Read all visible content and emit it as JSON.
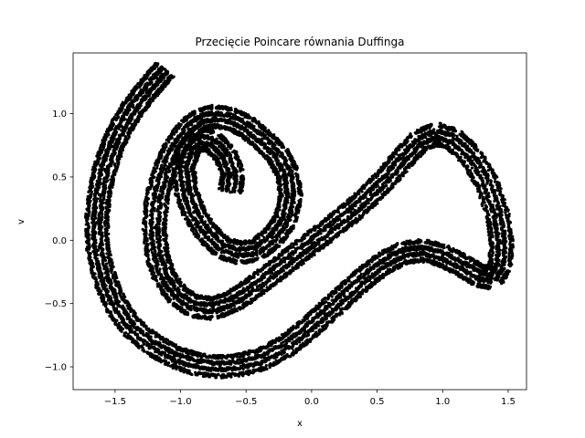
{
  "chart_data": {
    "type": "scatter",
    "title": "Przecięcie Poincare równania Duffinga",
    "xlabel": "x",
    "ylabel": "v",
    "xlim": [
      -1.82,
      1.64
    ],
    "ylim": [
      -1.18,
      1.48
    ],
    "x_ticks": [
      "−1.5",
      "−1.0",
      "−0.5",
      "0.0",
      "0.5",
      "1.0",
      "1.5"
    ],
    "x_tick_values": [
      -1.5,
      -1.0,
      -0.5,
      0.0,
      0.5,
      1.0,
      1.5
    ],
    "y_ticks": [
      "−1.0",
      "−0.5",
      "0.0",
      "0.5",
      "1.0"
    ],
    "y_tick_values": [
      -1.0,
      -0.5,
      0.0,
      0.5,
      1.0
    ],
    "grid": false,
    "legend": "none",
    "marker_color": "#000000",
    "series": [
      {
        "x": [
          -1.12,
          -1.18,
          -1.26,
          -1.36,
          -1.45,
          -1.52,
          -1.58,
          -1.62,
          -1.64,
          -1.63,
          -1.58,
          -1.5,
          -1.38,
          -1.22,
          -1.05,
          -0.88,
          -0.7,
          -0.52,
          -0.36,
          -0.2,
          -0.05,
          0.1,
          0.25,
          0.4,
          0.55,
          0.7,
          0.85,
          1.0,
          1.15,
          1.28,
          1.38,
          1.44,
          1.45,
          1.42,
          1.34,
          1.22,
          1.08,
          0.95,
          0.82,
          0.7,
          0.58,
          0.45,
          0.3,
          0.15,
          0.0,
          -0.15,
          -0.3,
          -0.45,
          -0.6,
          -0.75,
          -0.9,
          -1.02,
          -1.12,
          -1.18,
          -1.2,
          -1.18,
          -1.12,
          -1.04,
          -0.94,
          -0.84,
          -0.74,
          -0.62,
          -0.5,
          -0.38,
          -0.26,
          -0.18,
          -0.16,
          -0.2,
          -0.3,
          -0.42,
          -0.55,
          -0.68,
          -0.8,
          -0.9,
          -0.96,
          -0.98,
          -0.94,
          -0.86,
          -0.76,
          -0.66,
          -0.6,
          -0.62
        ],
        "y": [
          1.35,
          1.28,
          1.18,
          1.05,
          0.9,
          0.74,
          0.56,
          0.36,
          0.14,
          -0.08,
          -0.3,
          -0.5,
          -0.68,
          -0.82,
          -0.92,
          -0.98,
          -1.0,
          -0.98,
          -0.93,
          -0.84,
          -0.72,
          -0.58,
          -0.44,
          -0.3,
          -0.18,
          -0.1,
          -0.08,
          -0.12,
          -0.2,
          -0.28,
          -0.3,
          -0.2,
          -0.02,
          0.2,
          0.45,
          0.66,
          0.8,
          0.84,
          0.78,
          0.65,
          0.5,
          0.36,
          0.22,
          0.1,
          -0.02,
          -0.14,
          -0.26,
          -0.38,
          -0.48,
          -0.54,
          -0.52,
          -0.44,
          -0.3,
          -0.12,
          0.1,
          0.34,
          0.56,
          0.74,
          0.88,
          0.96,
          0.98,
          0.96,
          0.9,
          0.8,
          0.68,
          0.52,
          0.34,
          0.16,
          0.02,
          -0.08,
          -0.1,
          -0.06,
          0.06,
          0.22,
          0.4,
          0.58,
          0.72,
          0.8,
          0.78,
          0.68,
          0.52,
          0.38
        ]
      }
    ]
  }
}
